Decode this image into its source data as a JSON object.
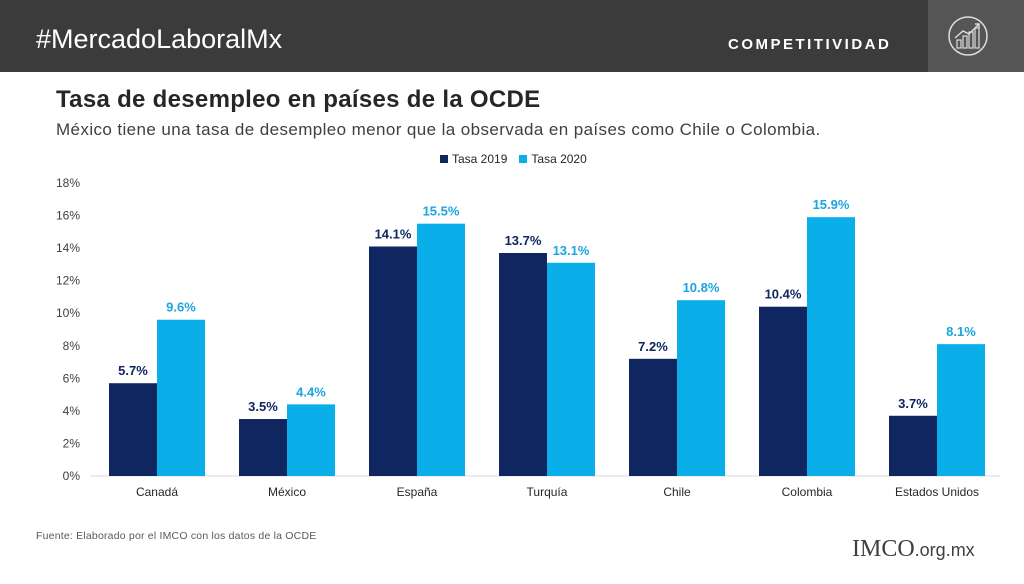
{
  "header": {
    "hashtag": "#MercadoLaboralMx",
    "section": "COMPETITIVIDAD",
    "icon": "bar-chart-growth-icon",
    "bg_color": "#3b3b3b"
  },
  "title": "Tasa de desempleo en países de la OCDE",
  "subtitle": "México tiene una tasa de desempleo menor que la observada en países como Chile o Colombia.",
  "source": "Fuente: Elaborado por el IMCO con los datos de la OCDE",
  "logo": {
    "text": "IMCO",
    "suffix": ".org.mx"
  },
  "chart_data": {
    "type": "bar",
    "categories": [
      "Canadá",
      "México",
      "España",
      "Turquía",
      "Chile",
      "Colombia",
      "Estados Unidos"
    ],
    "series": [
      {
        "name": "Tasa 2019",
        "color": "#0f2660",
        "label_color": "#0f2660",
        "values": [
          5.7,
          3.5,
          14.1,
          13.7,
          7.2,
          10.4,
          3.7
        ]
      },
      {
        "name": "Tasa 2020",
        "color": "#0aaee8",
        "label_color": "#1aa5e0",
        "values": [
          9.6,
          4.4,
          15.5,
          13.1,
          10.8,
          15.9,
          8.1
        ]
      }
    ],
    "ylim": [
      0,
      18
    ],
    "yticks": [
      0,
      2,
      4,
      6,
      8,
      10,
      12,
      14,
      16,
      18
    ],
    "ytick_labels": [
      "0%",
      "2%",
      "4%",
      "6%",
      "8%",
      "10%",
      "12%",
      "14%",
      "16%",
      "18%"
    ],
    "data_labels": [
      [
        "5.7%",
        "3.5%",
        "14.1%",
        "13.7%",
        "7.2%",
        "10.4%",
        "3.7%"
      ],
      [
        "9.6%",
        "4.4%",
        "15.5%",
        "13.1%",
        "10.8%",
        "15.9%",
        "8.1%"
      ]
    ],
    "legend_position": "top-center",
    "grid": false
  }
}
